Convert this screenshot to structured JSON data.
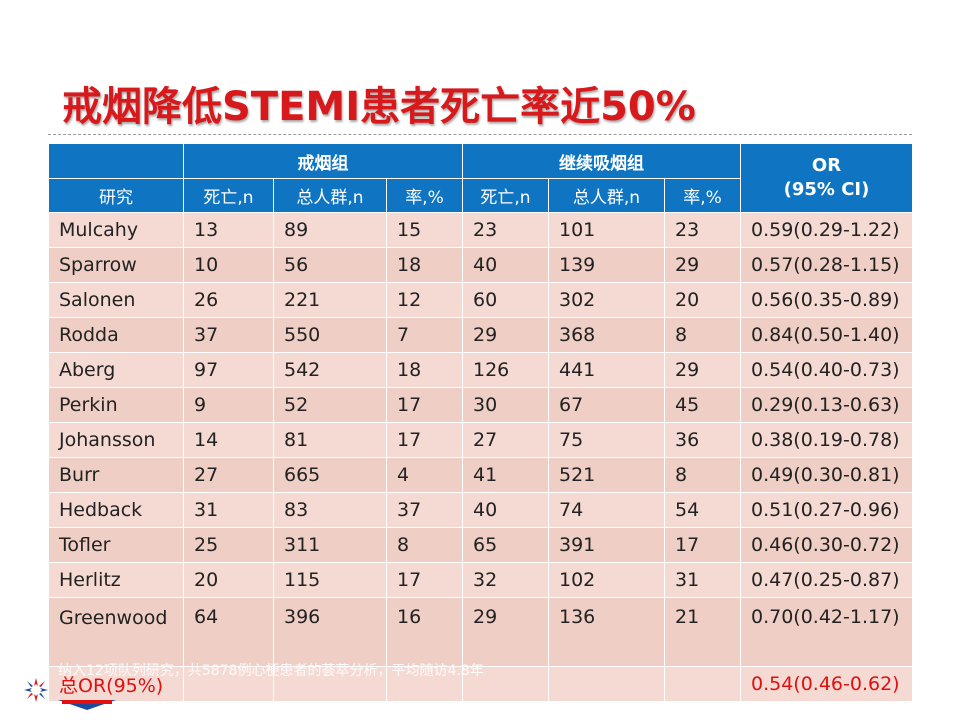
{
  "title": "戒烟降低STEMI患者死亡率近50%",
  "table": {
    "group1": "戒烟组",
    "group2": "继续吸烟组",
    "or_header_line1": "OR",
    "or_header_line2": "(95% CI)",
    "subheaders": [
      "研究",
      "死亡,n",
      "总人群,n",
      "率,%",
      "死亡,n",
      "总人群,n",
      "率,%"
    ],
    "rows": [
      {
        "study": "Mulcahy",
        "c1": "13",
        "c2": "89",
        "c3": "15",
        "c4": "23",
        "c5": "101",
        "c6": "23",
        "or": "0.59(0.29-1.22)"
      },
      {
        "study": "Sparrow",
        "c1": "10",
        "c2": "56",
        "c3": "18",
        "c4": "40",
        "c5": "139",
        "c6": "29",
        "or": "0.57(0.28-1.15)"
      },
      {
        "study": "Salonen",
        "c1": "26",
        "c2": "221",
        "c3": "12",
        "c4": "60",
        "c5": "302",
        "c6": "20",
        "or": "0.56(0.35-0.89)"
      },
      {
        "study": "Rodda",
        "c1": "37",
        "c2": "550",
        "c3": "7",
        "c4": "29",
        "c5": "368",
        "c6": "8",
        "or": "0.84(0.50-1.40)"
      },
      {
        "study": "Aberg",
        "c1": "97",
        "c2": "542",
        "c3": "18",
        "c4": "126",
        "c5": "441",
        "c6": "29",
        "or": "0.54(0.40-0.73)"
      },
      {
        "study": "Perkin",
        "c1": "9",
        "c2": "52",
        "c3": "17",
        "c4": "30",
        "c5": "67",
        "c6": "45",
        "or": "0.29(0.13-0.63)"
      },
      {
        "study": "Johansson",
        "c1": "14",
        "c2": "81",
        "c3": "17",
        "c4": "27",
        "c5": "75",
        "c6": "36",
        "or": "0.38(0.19-0.78)"
      },
      {
        "study": "Burr",
        "c1": "27",
        "c2": "665",
        "c3": "4",
        "c4": "41",
        "c5": "521",
        "c6": "8",
        "or": "0.49(0.30-0.81)"
      },
      {
        "study": "Hedback",
        "c1": "31",
        "c2": "83",
        "c3": "37",
        "c4": "40",
        "c5": "74",
        "c6": "54",
        "or": "0.51(0.27-0.96)"
      },
      {
        "study": "Tofler",
        "c1": "25",
        "c2": "311",
        "c3": "8",
        "c4": "65",
        "c5": "391",
        "c6": "17",
        "or": "0.46(0.30-0.72)"
      },
      {
        "study": "Herlitz",
        "c1": "20",
        "c2": "115",
        "c3": "17",
        "c4": "32",
        "c5": "102",
        "c6": "31",
        "or": "0.47(0.25-0.87)"
      },
      {
        "study": "Greenwood",
        "c1": "64",
        "c2": "396",
        "c3": "16",
        "c4": "29",
        "c5": "136",
        "c6": "21",
        "or": "0.70(0.42-1.17)"
      }
    ],
    "total_label": "总OR(95%)",
    "total_or": "0.54(0.46-0.62)"
  },
  "footnote": "纳入12项队列研究，共5878例心梗患者的荟萃分析，平均随访4.8年",
  "colors": {
    "header_blue": "#0f75c3",
    "title_red": "#d7191c",
    "row_light": "#f5dad4",
    "row_dark": "#efcfc5",
    "total_red": "#e01010"
  }
}
